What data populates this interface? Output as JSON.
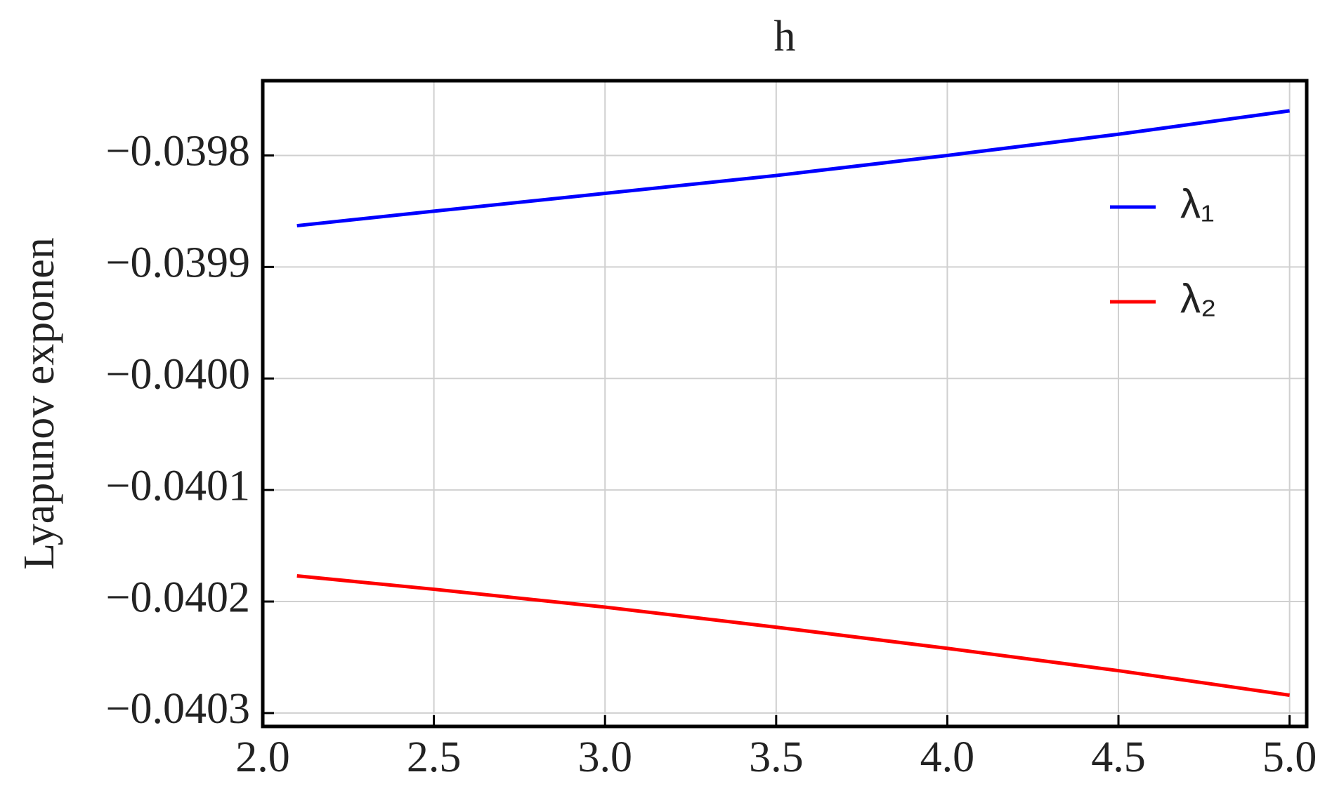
{
  "chart_data": {
    "type": "line",
    "title": "h",
    "y_label": "Lyapunov exponen",
    "x": [
      2.1,
      2.5,
      3.0,
      3.5,
      4.0,
      4.5,
      5.0
    ],
    "series": [
      {
        "name": "λ₁",
        "color": "#0000ff",
        "values": [
          -0.039863,
          -0.03985,
          -0.039834,
          -0.039818,
          -0.0398,
          -0.039781,
          -0.03976
        ]
      },
      {
        "name": "λ₂",
        "color": "#ff0000",
        "values": [
          -0.040177,
          -0.040189,
          -0.040205,
          -0.040223,
          -0.040242,
          -0.040262,
          -0.040284
        ]
      }
    ],
    "xlim": [
      2.0,
      5.05
    ],
    "xticks": [
      {
        "value": 2,
        "label": "2.0"
      },
      {
        "value": 2.5,
        "label": "2.5"
      },
      {
        "value": 3,
        "label": "3.0"
      },
      {
        "value": 3.5,
        "label": "3.5"
      },
      {
        "value": 4,
        "label": "4.0"
      },
      {
        "value": 4.5,
        "label": "4.5"
      },
      {
        "value": 5,
        "label": "5.0"
      }
    ],
    "ylim": [
      -0.040312,
      -0.039733
    ],
    "yticks": [
      {
        "value": -0.0398,
        "label": "−0.0398"
      },
      {
        "value": -0.0399,
        "label": "−0.0399"
      },
      {
        "value": -0.04,
        "label": "−0.0400"
      },
      {
        "value": -0.0401,
        "label": "−0.0401"
      },
      {
        "value": -0.0402,
        "label": "−0.0402"
      },
      {
        "value": -0.0403,
        "label": "−0.0403"
      }
    ],
    "grid": true,
    "legend": "right"
  }
}
